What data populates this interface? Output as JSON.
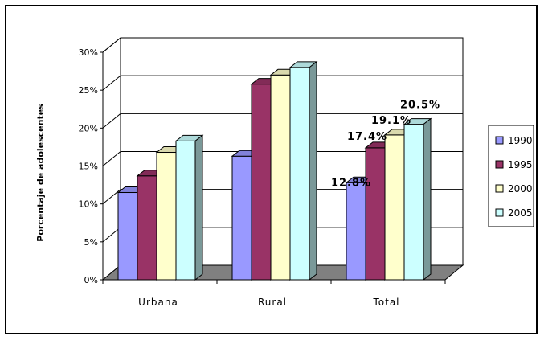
{
  "chart_data": {
    "type": "bar",
    "title": "",
    "xlabel": "",
    "ylabel": "Porcentaje de adolescentes",
    "categories": [
      "Urbana",
      "Rural",
      "Total"
    ],
    "ylim": [
      0,
      30
    ],
    "yticks": [
      "0%",
      "5%",
      "10%",
      "15%",
      "20%",
      "25%",
      "30%"
    ],
    "grid": true,
    "three_d": true,
    "legend_position": "right",
    "series": [
      {
        "name": "1990",
        "color": "#9999ff",
        "values": [
          11.5,
          16.3,
          12.8
        ]
      },
      {
        "name": "1995",
        "color": "#993366",
        "values": [
          13.7,
          25.8,
          17.4
        ]
      },
      {
        "name": "2000",
        "color": "#ffffcc",
        "values": [
          16.8,
          27.0,
          19.1
        ]
      },
      {
        "name": "2005",
        "color": "#ccffff",
        "values": [
          18.3,
          28.0,
          20.5
        ]
      }
    ],
    "data_labels": [
      {
        "category": "Total",
        "series": "1990",
        "text": "12.8%"
      },
      {
        "category": "Total",
        "series": "1995",
        "text": "17.4%"
      },
      {
        "category": "Total",
        "series": "2000",
        "text": "19.1%"
      },
      {
        "category": "Total",
        "series": "2005",
        "text": "20.5%"
      }
    ]
  }
}
